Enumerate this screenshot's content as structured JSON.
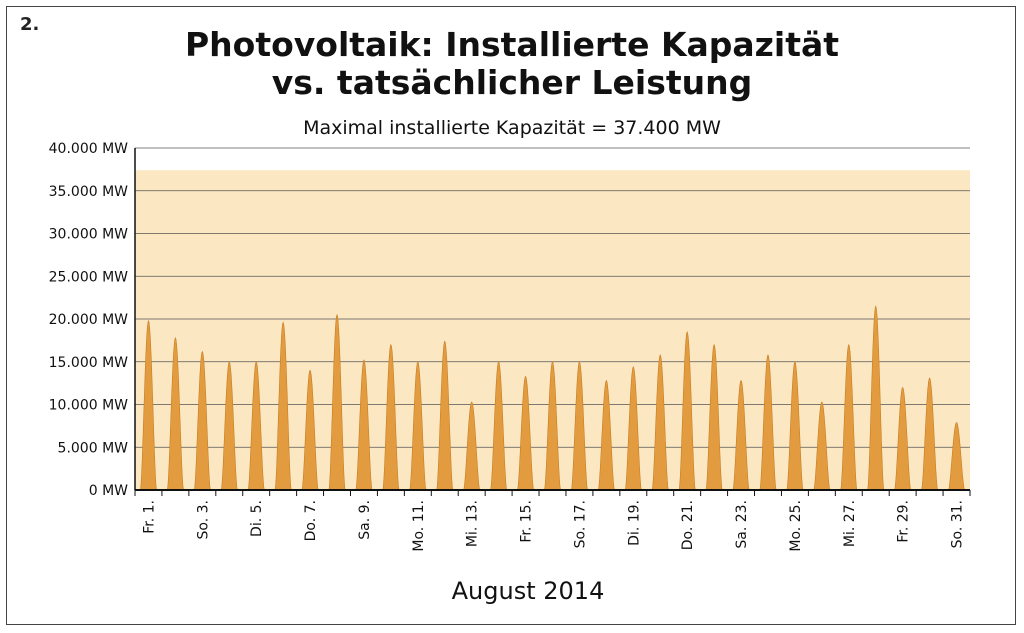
{
  "figure_number": "2.",
  "chart_data": {
    "type": "area",
    "title_line1": "Photovoltaik: Installierte Kapazität",
    "title_line2": "vs. tatsächlicher Leistung",
    "subtitle": "Maximal installierte Kapazität = 37.400 MW",
    "xlabel": "August 2014",
    "ylabel": "",
    "capacity_mw": 37400,
    "ylim": [
      0,
      40000
    ],
    "y_ticks": [
      {
        "value": 0,
        "label": "0 MW"
      },
      {
        "value": 5000,
        "label": "5.000 MW"
      },
      {
        "value": 10000,
        "label": "10.000 MW"
      },
      {
        "value": 15000,
        "label": "15.000 MW"
      },
      {
        "value": 20000,
        "label": "20.000 MW"
      },
      {
        "value": 25000,
        "label": "25.000 MW"
      },
      {
        "value": 30000,
        "label": "30.000 MW"
      },
      {
        "value": 35000,
        "label": "35.000 MW"
      },
      {
        "value": 40000,
        "label": "40.000 MW"
      }
    ],
    "x_tick_labels": [
      "Fr. 1.",
      "So. 3.",
      "Di. 5.",
      "Do. 7.",
      "Sa. 9.",
      "Mo. 11.",
      "Mi. 13.",
      "Fr. 15.",
      "So. 17.",
      "Di. 19.",
      "Do. 21.",
      "Sa. 23.",
      "Mo. 25.",
      "Mi. 27.",
      "Fr. 29.",
      "So. 31."
    ],
    "days": [
      1,
      2,
      3,
      4,
      5,
      6,
      7,
      8,
      9,
      10,
      11,
      12,
      13,
      14,
      15,
      16,
      17,
      18,
      19,
      20,
      21,
      22,
      23,
      24,
      25,
      26,
      27,
      28,
      29,
      30,
      31
    ],
    "daily_peak_mw": [
      19800,
      17800,
      16200,
      15000,
      15000,
      19600,
      14000,
      20500,
      15200,
      17000,
      15000,
      17400,
      10300,
      15000,
      13300,
      15000,
      15000,
      12800,
      14400,
      15800,
      18500,
      17000,
      12800,
      15800,
      15000,
      10300,
      17000,
      21500,
      12000,
      13100,
      7900
    ],
    "grid": true,
    "colors": {
      "capacity_band": "#fbe8c3",
      "peak_fill": "#e29b3e",
      "peak_edge": "#c97e22",
      "grid": "#555555",
      "axis": "#111111"
    }
  }
}
